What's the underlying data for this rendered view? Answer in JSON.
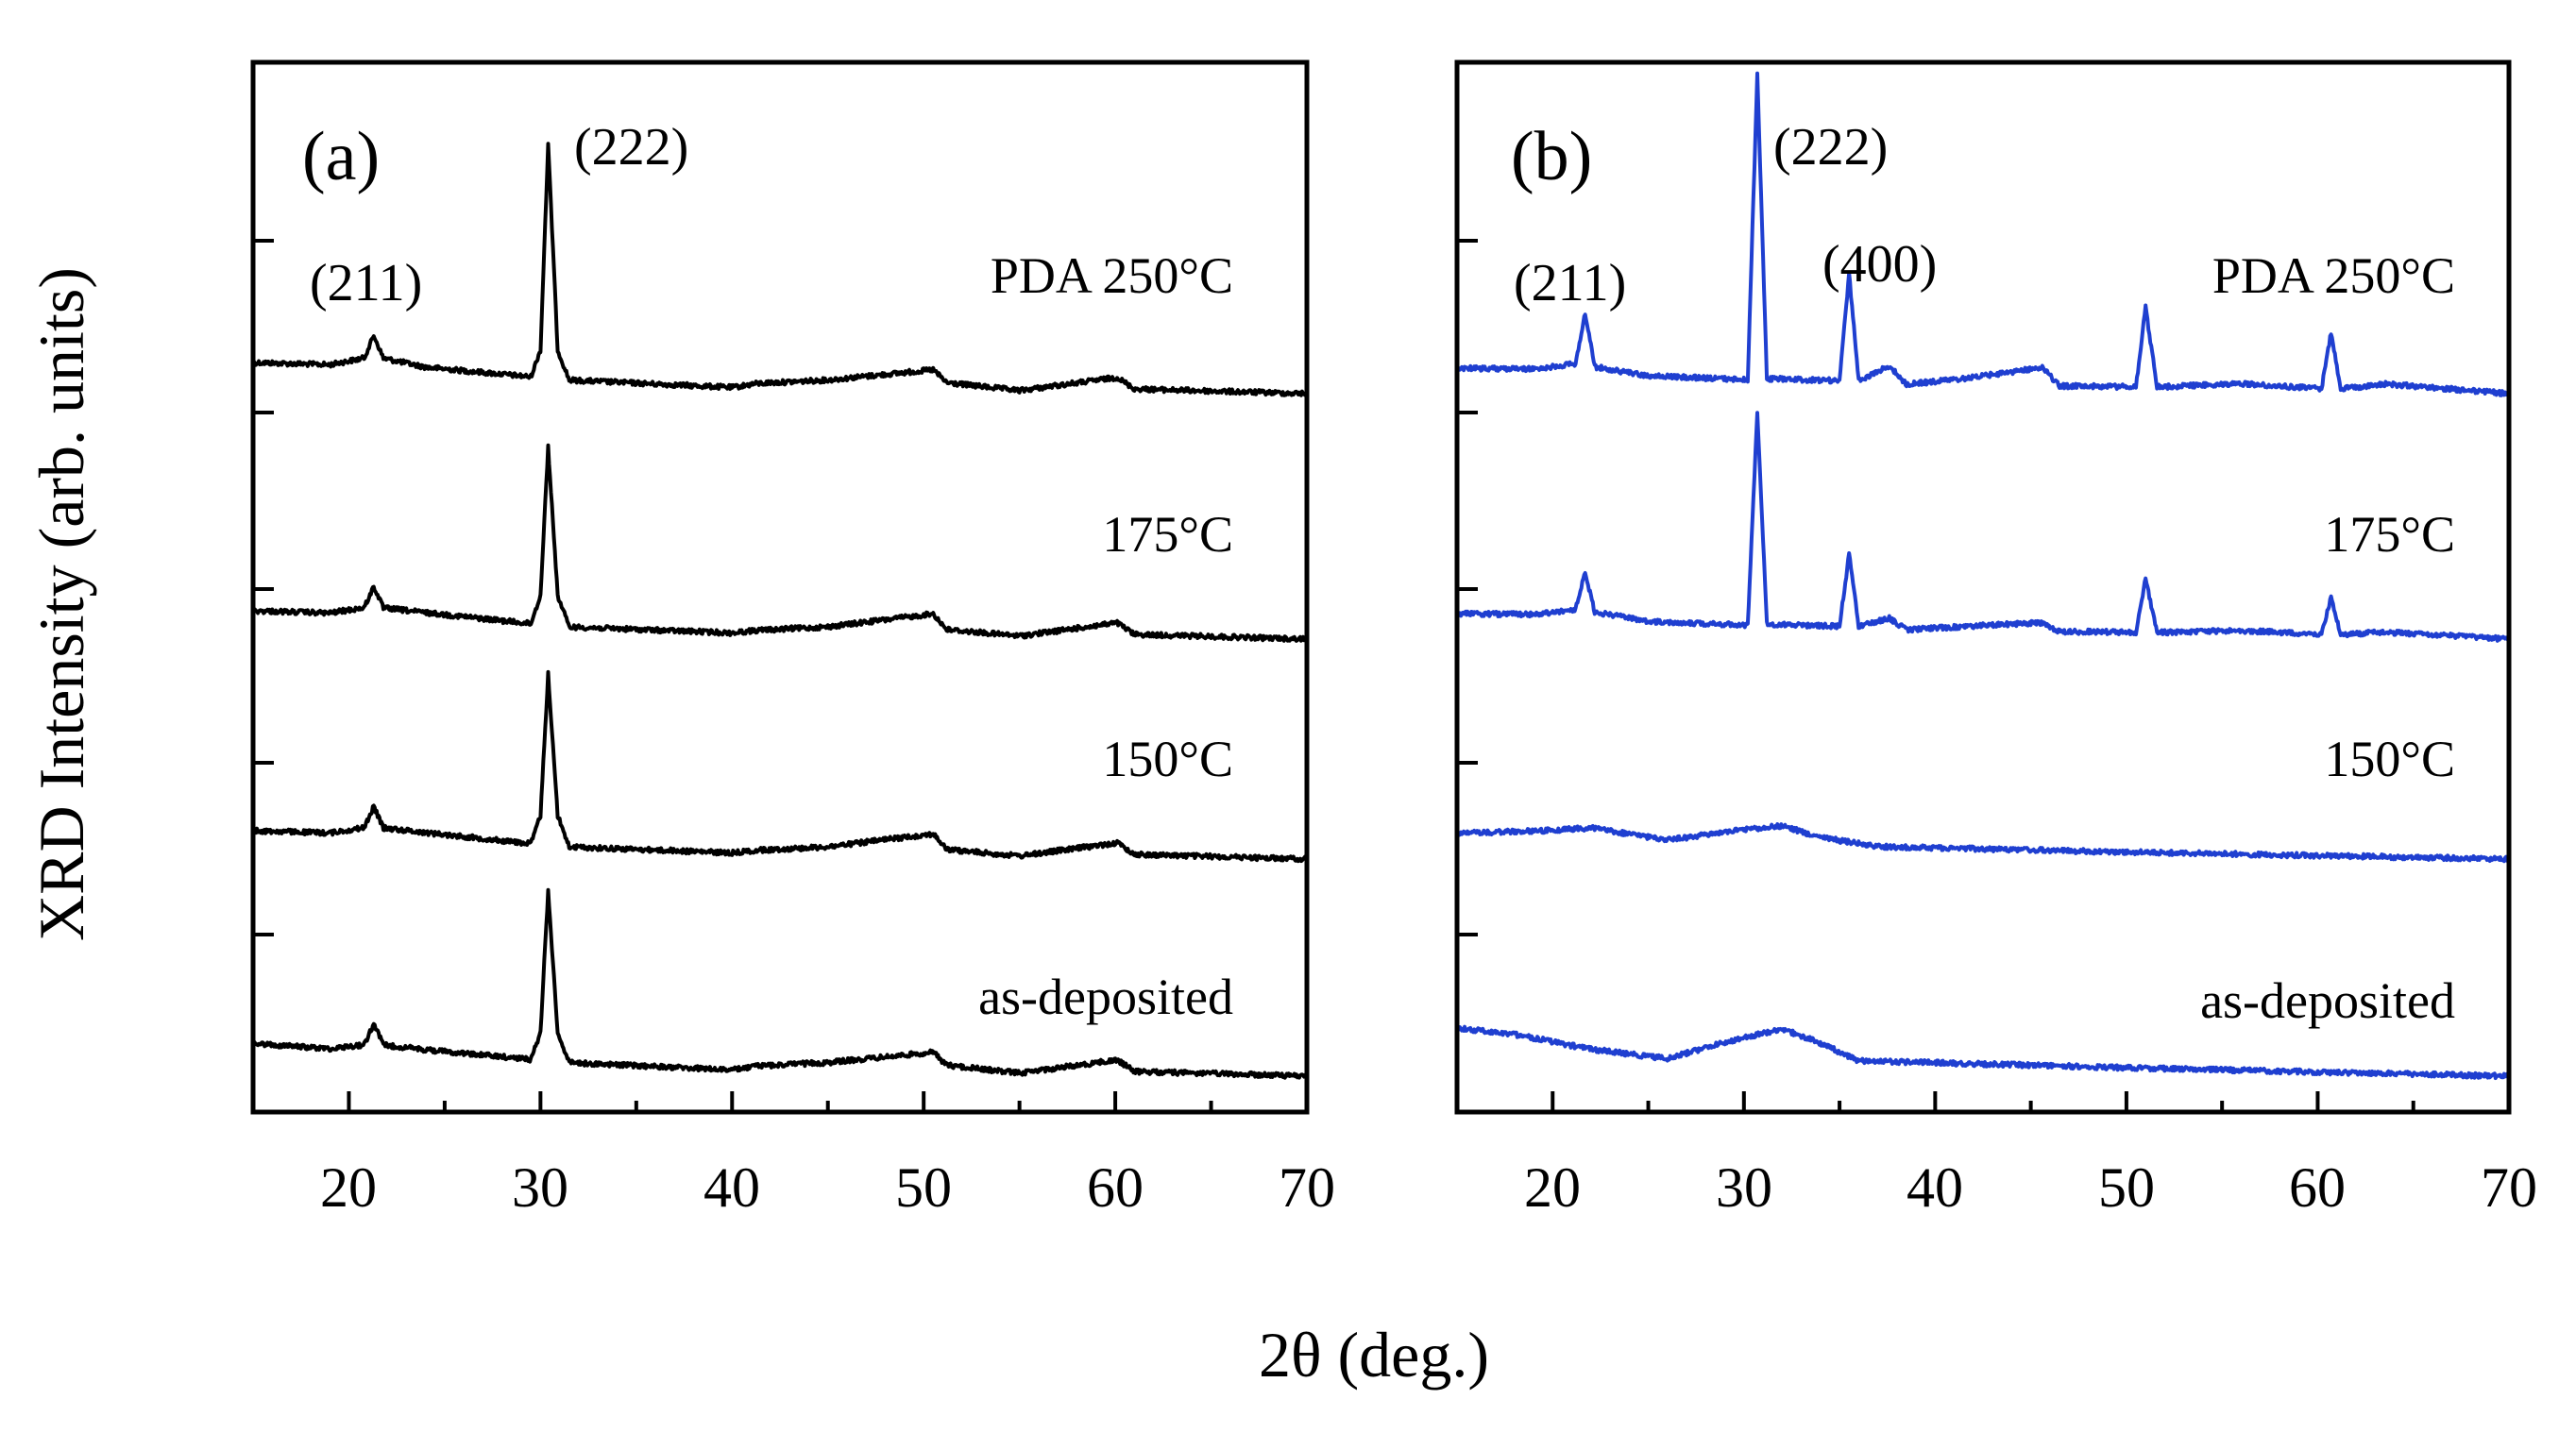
{
  "figure": {
    "ylabel": "XRD Intensity (arb. units)",
    "xlabel": "2θ (deg.)"
  },
  "chart_data": [
    {
      "type": "line",
      "panel_label": "(a)",
      "color": "#000000",
      "xlim": [
        15,
        70
      ],
      "x_ticks": [
        "20",
        "30",
        "40",
        "50",
        "60",
        "70"
      ],
      "ylabel": "XRD Intensity (arb. units)",
      "xlabel": "2θ (deg.)",
      "sample_labels": [
        "PDA 250°C",
        "175°C",
        "150°C",
        "as-deposited"
      ],
      "peak_labels": [
        {
          "text": "(211)",
          "x": 21.3
        },
        {
          "text": "(222)",
          "x": 30.4
        }
      ],
      "series": [
        {
          "name": "PDA 250°C",
          "values": [
            {
              "x": 15,
              "y": 0.14
            },
            {
              "x": 19,
              "y": 0.13
            },
            {
              "x": 20.8,
              "y": 0.18
            },
            {
              "x": 21.3,
              "y": 0.34
            },
            {
              "x": 21.8,
              "y": 0.18
            },
            {
              "x": 24,
              "y": 0.12
            },
            {
              "x": 29.5,
              "y": 0.06
            },
            {
              "x": 30.0,
              "y": 0.25
            },
            {
              "x": 30.4,
              "y": 1.7
            },
            {
              "x": 30.9,
              "y": 0.25
            },
            {
              "x": 31.5,
              "y": 0.04
            },
            {
              "x": 40,
              "y": 0.0
            },
            {
              "x": 41.3,
              "y": 0.03
            },
            {
              "x": 45,
              "y": 0.06
            },
            {
              "x": 50.5,
              "y": 0.14
            },
            {
              "x": 51.2,
              "y": 0.05
            },
            {
              "x": 55,
              "y": 0.0
            },
            {
              "x": 60.1,
              "y": 0.1
            },
            {
              "x": 61,
              "y": 0.02
            },
            {
              "x": 70,
              "y": 0.0
            }
          ]
        },
        {
          "name": "175°C",
          "values": [
            {
              "x": 15,
              "y": 0.12
            },
            {
              "x": 19,
              "y": 0.11
            },
            {
              "x": 20.8,
              "y": 0.15
            },
            {
              "x": 21.3,
              "y": 0.3
            },
            {
              "x": 21.8,
              "y": 0.15
            },
            {
              "x": 24,
              "y": 0.12
            },
            {
              "x": 29.5,
              "y": 0.05
            },
            {
              "x": 30.0,
              "y": 0.25
            },
            {
              "x": 30.4,
              "y": 1.3
            },
            {
              "x": 30.9,
              "y": 0.25
            },
            {
              "x": 31.5,
              "y": 0.03
            },
            {
              "x": 40,
              "y": 0.0
            },
            {
              "x": 41.3,
              "y": 0.02
            },
            {
              "x": 45,
              "y": 0.05
            },
            {
              "x": 50.5,
              "y": 0.15
            },
            {
              "x": 51.2,
              "y": 0.04
            },
            {
              "x": 55,
              "y": 0.0
            },
            {
              "x": 60.1,
              "y": 0.1
            },
            {
              "x": 61,
              "y": 0.02
            },
            {
              "x": 70,
              "y": 0.0
            }
          ]
        },
        {
          "name": "150°C",
          "values": [
            {
              "x": 15,
              "y": 0.12
            },
            {
              "x": 19,
              "y": 0.11
            },
            {
              "x": 20.8,
              "y": 0.15
            },
            {
              "x": 21.3,
              "y": 0.3
            },
            {
              "x": 21.8,
              "y": 0.15
            },
            {
              "x": 24,
              "y": 0.12
            },
            {
              "x": 29.5,
              "y": 0.05
            },
            {
              "x": 30.0,
              "y": 0.25
            },
            {
              "x": 30.4,
              "y": 1.25
            },
            {
              "x": 30.9,
              "y": 0.25
            },
            {
              "x": 31.5,
              "y": 0.03
            },
            {
              "x": 40,
              "y": 0.0
            },
            {
              "x": 41.3,
              "y": 0.02
            },
            {
              "x": 45,
              "y": 0.05
            },
            {
              "x": 50.5,
              "y": 0.15
            },
            {
              "x": 51.2,
              "y": 0.04
            },
            {
              "x": 55,
              "y": 0.0
            },
            {
              "x": 60.1,
              "y": 0.1
            },
            {
              "x": 61,
              "y": 0.02
            },
            {
              "x": 70,
              "y": 0.0
            }
          ]
        },
        {
          "name": "as-deposited",
          "values": [
            {
              "x": 15,
              "y": 0.15
            },
            {
              "x": 19,
              "y": 0.12
            },
            {
              "x": 20.8,
              "y": 0.15
            },
            {
              "x": 21.3,
              "y": 0.3
            },
            {
              "x": 21.8,
              "y": 0.15
            },
            {
              "x": 24,
              "y": 0.12
            },
            {
              "x": 29.5,
              "y": 0.06
            },
            {
              "x": 30.0,
              "y": 0.25
            },
            {
              "x": 30.4,
              "y": 1.25
            },
            {
              "x": 30.9,
              "y": 0.25
            },
            {
              "x": 31.5,
              "y": 0.04
            },
            {
              "x": 40,
              "y": 0.0
            },
            {
              "x": 41.3,
              "y": 0.03
            },
            {
              "x": 45,
              "y": 0.06
            },
            {
              "x": 50.5,
              "y": 0.14
            },
            {
              "x": 51.2,
              "y": 0.05
            },
            {
              "x": 55,
              "y": 0.0
            },
            {
              "x": 60.1,
              "y": 0.1
            },
            {
              "x": 61,
              "y": 0.02
            },
            {
              "x": 70,
              "y": 0.0
            }
          ]
        }
      ]
    },
    {
      "type": "line",
      "panel_label": "(b)",
      "color": "#1f3fd0",
      "xlim": [
        15,
        70
      ],
      "x_ticks": [
        "20",
        "30",
        "40",
        "50",
        "60",
        "70"
      ],
      "ylabel": "XRD Intensity (arb. units)",
      "xlabel": "2θ (deg.)",
      "sample_labels": [
        "PDA 250°C",
        "175°C",
        "150°C",
        "as-deposited"
      ],
      "peak_labels": [
        {
          "text": "(211)",
          "x": 21.7
        },
        {
          "text": "(222)",
          "x": 30.7
        },
        {
          "text": "(400)",
          "x": 35.5
        }
      ],
      "series": [
        {
          "name": "PDA 250°C",
          "values": [
            {
              "x": 15,
              "y": 0.1
            },
            {
              "x": 19,
              "y": 0.1
            },
            {
              "x": 21.2,
              "y": 0.14
            },
            {
              "x": 21.7,
              "y": 0.5
            },
            {
              "x": 22.2,
              "y": 0.12
            },
            {
              "x": 25,
              "y": 0.06
            },
            {
              "x": 30.2,
              "y": 0.04
            },
            {
              "x": 30.7,
              "y": 2.2
            },
            {
              "x": 31.2,
              "y": 0.05
            },
            {
              "x": 35.0,
              "y": 0.04
            },
            {
              "x": 35.5,
              "y": 0.8
            },
            {
              "x": 36.0,
              "y": 0.04
            },
            {
              "x": 37.6,
              "y": 0.15
            },
            {
              "x": 38.5,
              "y": 0.02
            },
            {
              "x": 41.8,
              "y": 0.07
            },
            {
              "x": 45.6,
              "y": 0.15
            },
            {
              "x": 46.5,
              "y": 0.02
            },
            {
              "x": 50.5,
              "y": 0.02
            },
            {
              "x": 51.0,
              "y": 0.58
            },
            {
              "x": 51.6,
              "y": 0.02
            },
            {
              "x": 56.0,
              "y": 0.05
            },
            {
              "x": 60.2,
              "y": 0.02
            },
            {
              "x": 60.7,
              "y": 0.42
            },
            {
              "x": 61.2,
              "y": 0.02
            },
            {
              "x": 63.5,
              "y": 0.06
            },
            {
              "x": 70,
              "y": 0.0
            }
          ]
        },
        {
          "name": "175°C",
          "values": [
            {
              "x": 15,
              "y": 0.1
            },
            {
              "x": 19,
              "y": 0.1
            },
            {
              "x": 21.2,
              "y": 0.14
            },
            {
              "x": 21.7,
              "y": 0.4
            },
            {
              "x": 22.2,
              "y": 0.12
            },
            {
              "x": 25,
              "y": 0.06
            },
            {
              "x": 30.2,
              "y": 0.04
            },
            {
              "x": 30.7,
              "y": 1.55
            },
            {
              "x": 31.2,
              "y": 0.05
            },
            {
              "x": 35.0,
              "y": 0.04
            },
            {
              "x": 35.5,
              "y": 0.55
            },
            {
              "x": 36.0,
              "y": 0.04
            },
            {
              "x": 37.6,
              "y": 0.1
            },
            {
              "x": 38.5,
              "y": 0.02
            },
            {
              "x": 41.8,
              "y": 0.05
            },
            {
              "x": 45.6,
              "y": 0.08
            },
            {
              "x": 46.5,
              "y": 0.02
            },
            {
              "x": 50.5,
              "y": 0.02
            },
            {
              "x": 51.0,
              "y": 0.4
            },
            {
              "x": 51.6,
              "y": 0.02
            },
            {
              "x": 56.0,
              "y": 0.04
            },
            {
              "x": 60.2,
              "y": 0.02
            },
            {
              "x": 60.7,
              "y": 0.28
            },
            {
              "x": 61.2,
              "y": 0.02
            },
            {
              "x": 63.5,
              "y": 0.04
            },
            {
              "x": 70,
              "y": 0.0
            }
          ]
        },
        {
          "name": "150°C",
          "values": [
            {
              "x": 15,
              "y": 0.1
            },
            {
              "x": 20,
              "y": 0.13
            },
            {
              "x": 22,
              "y": 0.15
            },
            {
              "x": 26,
              "y": 0.07
            },
            {
              "x": 30,
              "y": 0.15
            },
            {
              "x": 32,
              "y": 0.18
            },
            {
              "x": 34,
              "y": 0.1
            },
            {
              "x": 37,
              "y": 0.04
            },
            {
              "x": 50,
              "y": 0.02
            },
            {
              "x": 70,
              "y": 0.0
            }
          ]
        },
        {
          "name": "as-deposited",
          "values": [
            {
              "x": 15,
              "y": 0.26
            },
            {
              "x": 18,
              "y": 0.22
            },
            {
              "x": 22,
              "y": 0.12
            },
            {
              "x": 26,
              "y": 0.06
            },
            {
              "x": 29,
              "y": 0.18
            },
            {
              "x": 32,
              "y": 0.28
            },
            {
              "x": 34,
              "y": 0.18
            },
            {
              "x": 36,
              "y": 0.06
            },
            {
              "x": 50,
              "y": 0.03
            },
            {
              "x": 70,
              "y": 0.0
            }
          ]
        }
      ]
    }
  ]
}
